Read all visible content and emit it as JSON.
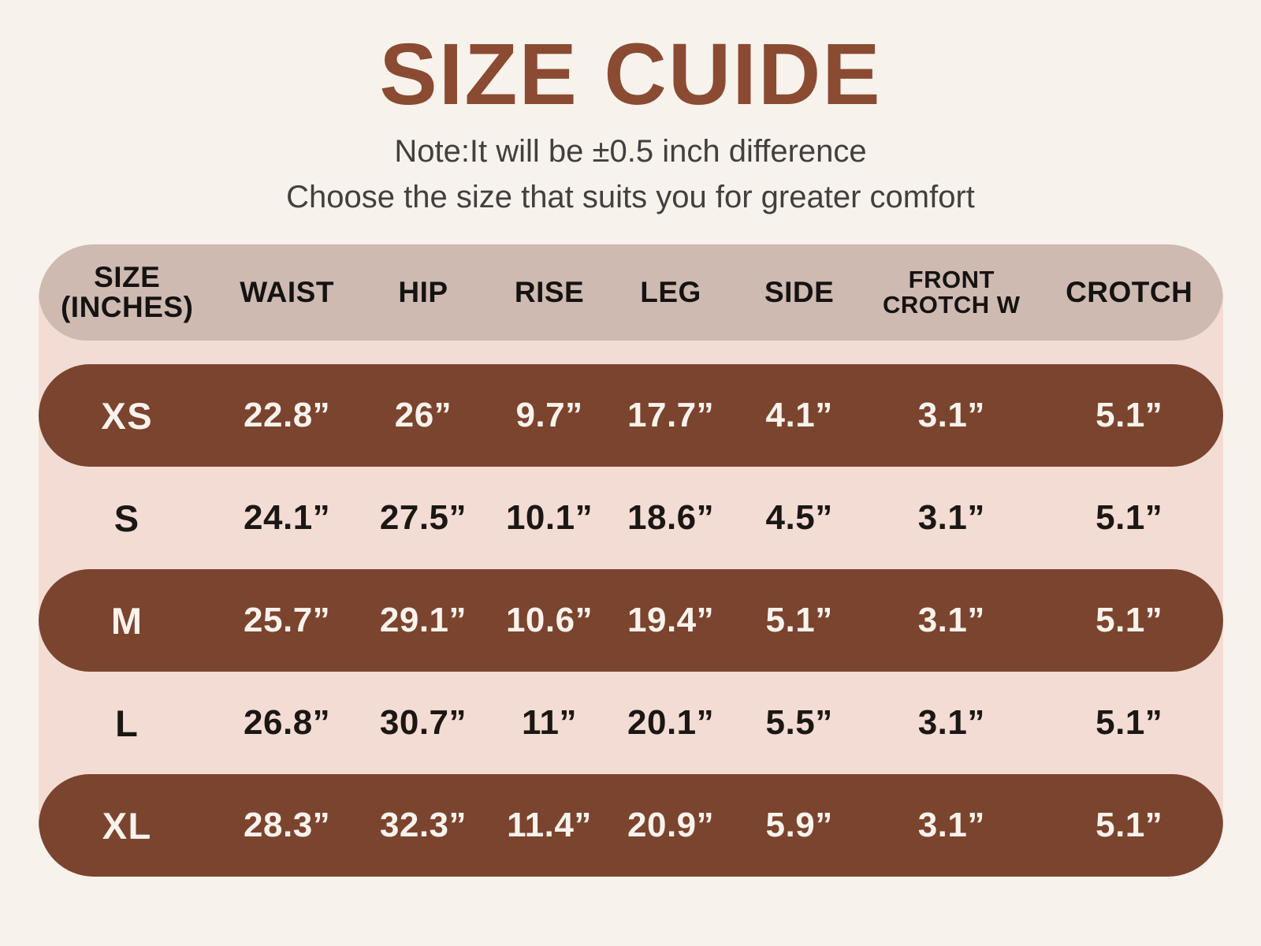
{
  "page": {
    "title": "SIZE CUIDE",
    "note_line1": "Note:It will be ±0.5 inch difference",
    "note_line2": "Choose the size that suits you for greater comfort"
  },
  "colors": {
    "page_background": "#F8F2EC",
    "title_brown": "#8B4A32",
    "panel_pink": "#F3DCD3",
    "header_mauve": "#CEBAB1",
    "row_brown": "#7B442E",
    "text_dark": "#1A1714",
    "text_light": "#FAF3ED"
  },
  "table": {
    "columns": [
      [
        "SIZE",
        "(INCHES)"
      ],
      [
        "WAIST"
      ],
      [
        "HIP"
      ],
      [
        "RISE"
      ],
      [
        "LEG"
      ],
      [
        "SIDE"
      ],
      [
        "FRONT",
        "CROTCH W"
      ],
      [
        "CROTCH"
      ]
    ],
    "rows": [
      {
        "variant": "brown",
        "cells": [
          "XS",
          "22.8”",
          "26”",
          "9.7”",
          "17.7”",
          "4.1”",
          "3.1”",
          "5.1”"
        ]
      },
      {
        "variant": "pink",
        "cells": [
          "S",
          "24.1”",
          "27.5”",
          "10.1”",
          "18.6”",
          "4.5”",
          "3.1”",
          "5.1”"
        ]
      },
      {
        "variant": "brown",
        "cells": [
          "M",
          "25.7”",
          "29.1”",
          "10.6”",
          "19.4”",
          "5.1”",
          "3.1”",
          "5.1”"
        ]
      },
      {
        "variant": "pink",
        "cells": [
          "L",
          "26.8”",
          "30.7”",
          "11”",
          "20.1”",
          "5.5”",
          "3.1”",
          "5.1”"
        ]
      },
      {
        "variant": "brown",
        "cells": [
          "XL",
          "28.3”",
          "32.3”",
          "11.4”",
          "20.9”",
          "5.9”",
          "3.1”",
          "5.1”"
        ]
      }
    ]
  }
}
